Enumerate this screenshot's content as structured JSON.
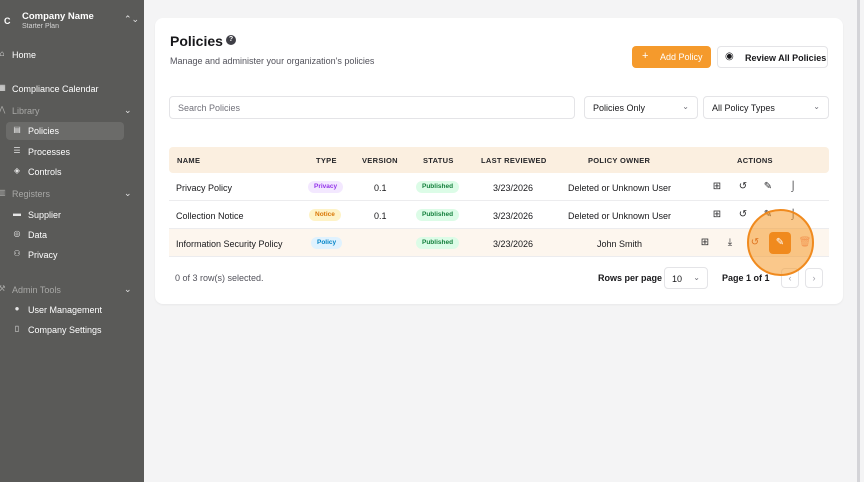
{
  "sidebar": {
    "logo_letter": "C",
    "company_name": "Company Name",
    "plan": "Starter Plan",
    "items": [
      {
        "label": "Home",
        "icon": "home-icon"
      },
      {
        "label": "Compliance Calendar",
        "icon": "calendar-icon"
      },
      {
        "label": "Library",
        "icon": "library-icon"
      },
      {
        "label": "Policies",
        "icon": "file-icon"
      },
      {
        "label": "Processes",
        "icon": "process-icon"
      },
      {
        "label": "Controls",
        "icon": "shield-icon"
      },
      {
        "label": "Registers",
        "icon": "register-icon"
      },
      {
        "label": "Supplier",
        "icon": "truck-icon"
      },
      {
        "label": "Data",
        "icon": "database-icon"
      },
      {
        "label": "Privacy",
        "icon": "users-icon"
      },
      {
        "label": "Admin Tools",
        "icon": "wrench-icon"
      },
      {
        "label": "User Management",
        "icon": "user-icon"
      },
      {
        "label": "Company Settings",
        "icon": "building-icon"
      }
    ]
  },
  "header": {
    "title": "Policies",
    "subtitle": "Manage and administer your organization's policies",
    "add_button": "Add Policy",
    "review_button": "Review All Policies"
  },
  "filters": {
    "search_placeholder": "Search Policies",
    "scope": "Policies Only",
    "type": "All Policy Types"
  },
  "table": {
    "columns": [
      "NAME",
      "TYPE",
      "VERSION",
      "STATUS",
      "LAST REVIEWED",
      "POLICY OWNER",
      "ACTIONS"
    ],
    "rows": [
      {
        "name": "Privacy Policy",
        "type": "Privacy",
        "version": "0.1",
        "status": "Published",
        "last_reviewed": "3/23/2026",
        "owner": "Deleted or Unknown User"
      },
      {
        "name": "Collection Notice",
        "type": "Notice",
        "version": "0.1",
        "status": "Published",
        "last_reviewed": "3/23/2026",
        "owner": "Deleted or Unknown User"
      },
      {
        "name": "Information Security Policy",
        "type": "Policy",
        "version": "",
        "status": "Published",
        "last_reviewed": "3/23/2026",
        "owner": "John Smith"
      }
    ]
  },
  "footer": {
    "selection": "0 of 3 row(s) selected.",
    "rows_per_page_label": "Rows per page",
    "rows_per_page": "10",
    "page": "Page 1 of 1"
  },
  "colors": {
    "accent": "#f59a2c",
    "sidebar": "#5a5a58",
    "badge_privacy_bg": "#f3e8ff",
    "badge_privacy_fg": "#9333ea",
    "badge_notice_bg": "#fef3c7",
    "badge_notice_fg": "#d97706",
    "badge_policy_bg": "#e0f2fe",
    "badge_policy_fg": "#0284c7",
    "badge_published_bg": "#dcfce7",
    "badge_published_fg": "#15803d"
  }
}
